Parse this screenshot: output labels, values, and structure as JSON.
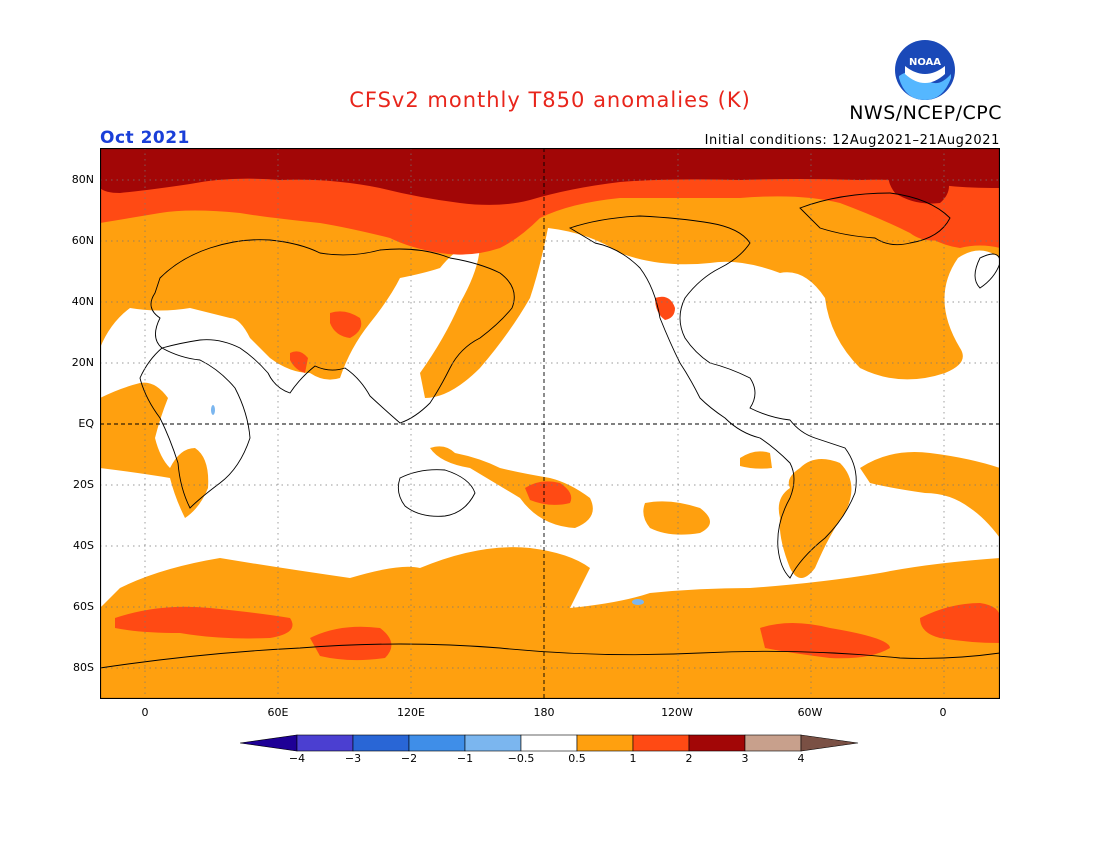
{
  "title": "CFSv2 monthly T850 anomalies (K)",
  "agency": "NWS/NCEP/CPC",
  "logo_text": "NOAA",
  "month_label": "Oct 2021",
  "initial_conditions": "Initial conditions: 12Aug2021–21Aug2021",
  "lat_labels": [
    "80N",
    "60N",
    "40N",
    "20N",
    "EQ",
    "20S",
    "40S",
    "60S",
    "80S"
  ],
  "lon_labels": [
    "0",
    "60E",
    "120E",
    "180",
    "120W",
    "60W",
    "0"
  ],
  "colorbar": {
    "labels": [
      "−4",
      "−3",
      "−2",
      "−1",
      "−0.5",
      "0.5",
      "1",
      "2",
      "3",
      "4"
    ],
    "colors": [
      "#1e0096",
      "#4b3fd1",
      "#2966d6",
      "#3f8ee8",
      "#7bb6ef",
      "#ffffff",
      "#ffa00f",
      "#ff4a14",
      "#a20606",
      "#c8a08c",
      "#7a5044"
    ]
  },
  "colors": {
    "title": "#e8251b",
    "month": "#1a3fd8",
    "anomaly_0_5_to_1": "#ffa00f",
    "anomaly_1_to_2": "#ff4a14",
    "anomaly_2_to_3": "#a20606",
    "anomaly_neg_0_5_to_neg_1": "#7bb6ef"
  }
}
